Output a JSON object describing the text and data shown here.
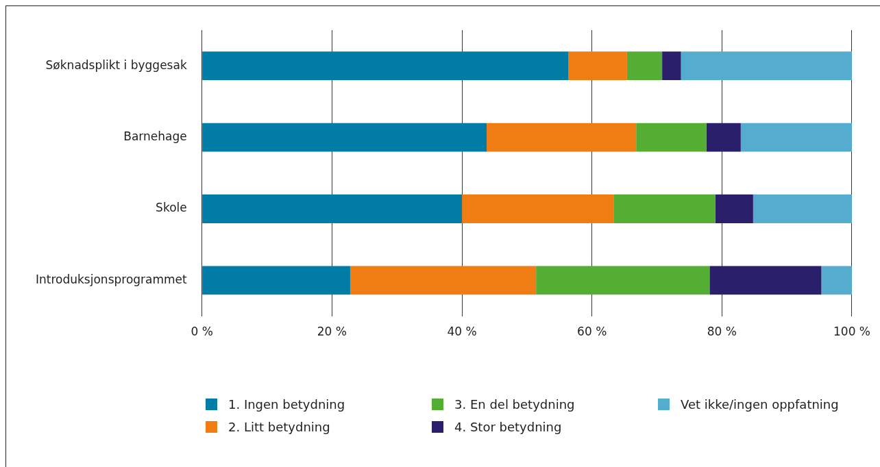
{
  "chart_data": {
    "type": "bar",
    "orientation": "horizontal",
    "stacked": true,
    "categories": [
      "Søknadsplikt i byggesak",
      "Barnehage",
      "Skole",
      "Introduksjonsprogrammet"
    ],
    "series": [
      {
        "name": "1. Ingen betydning",
        "color": "#007ca6",
        "values": [
          56.4,
          43.8,
          40.0,
          22.8
        ]
      },
      {
        "name": "2. Litt betydning",
        "color": "#ef7d14",
        "values": [
          9.0,
          23.0,
          23.4,
          28.6
        ]
      },
      {
        "name": "3. En del betydning",
        "color": "#54ae33",
        "values": [
          5.4,
          10.8,
          15.6,
          26.7
        ]
      },
      {
        "name": "4. Stor betydning",
        "color": "#2a1f6b",
        "values": [
          2.9,
          5.3,
          5.8,
          17.2
        ]
      },
      {
        "name": "Vet ikke/ingen oppfatning",
        "color": "#54acce",
        "values": [
          26.3,
          17.1,
          15.2,
          4.7
        ]
      }
    ],
    "xlim": [
      0,
      100
    ],
    "xticks": [
      {
        "value": 0,
        "label": "0 %"
      },
      {
        "value": 20,
        "label": "20 %"
      },
      {
        "value": 40,
        "label": "40 %"
      },
      {
        "value": 60,
        "label": "60 %"
      },
      {
        "value": 80,
        "label": "80 %"
      },
      {
        "value": 100,
        "label": "100 %"
      }
    ],
    "grid": "x",
    "legend": "bottom"
  }
}
